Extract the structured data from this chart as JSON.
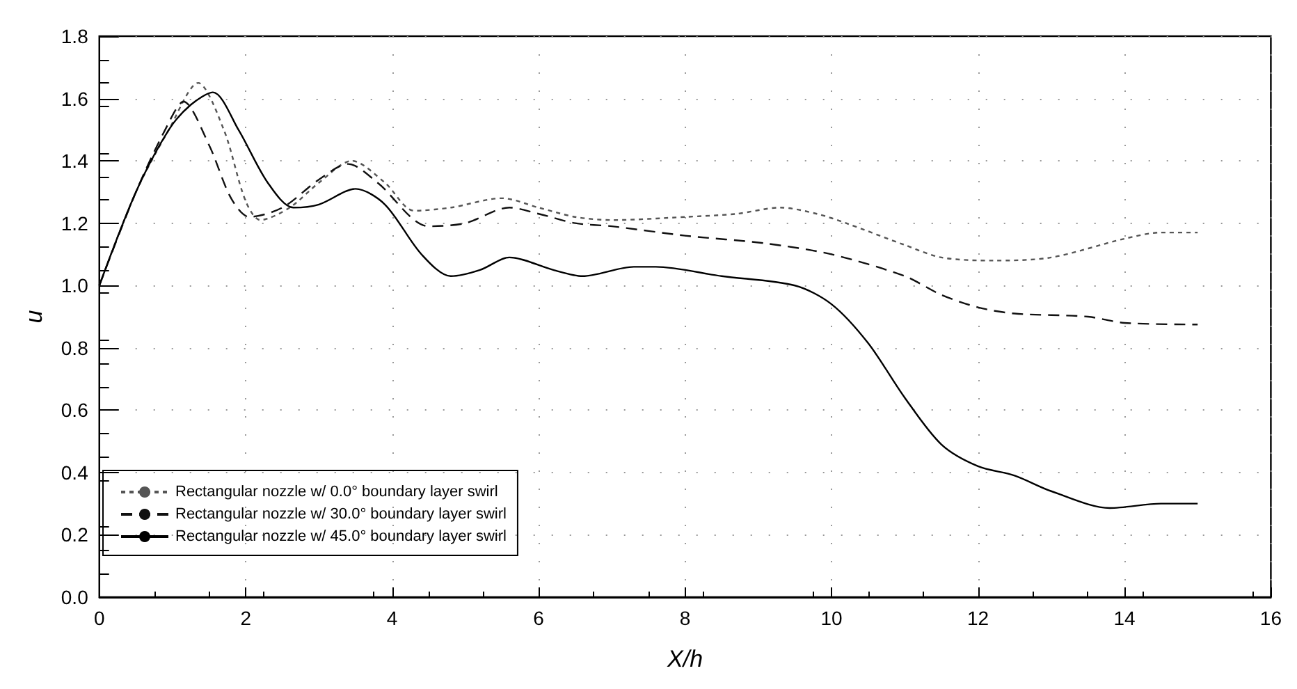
{
  "chart_data": {
    "type": "line",
    "xlabel": "X/h",
    "ylabel": "u",
    "xlim": [
      0,
      16
    ],
    "xticks": [
      0,
      2,
      4,
      6,
      8,
      10,
      12,
      14,
      16
    ],
    "ylim": [
      0,
      1.8
    ],
    "yticks": [
      {
        "value": 0,
        "label": "0.0"
      },
      0.2,
      0.4,
      0.6,
      0.8,
      {
        "value": 1,
        "label": "1.0"
      },
      1.2,
      1.4,
      1.6,
      1.8
    ],
    "grid": true,
    "legend": "bottom left",
    "marker": "none",
    "series": [
      {
        "name": "Rectangular nozzle w/ 0.0° boundary layer swirl",
        "color": "#555555",
        "line_style": "dotted",
        "x": [
          0,
          0.5,
          0.95,
          1.35,
          1.7,
          2.0,
          2.2,
          2.6,
          3.0,
          3.45,
          3.9,
          4.3,
          4.8,
          5.5,
          6.0,
          6.5,
          7.0,
          8.0,
          8.7,
          9.3,
          9.8,
          10.2,
          11.0,
          11.5,
          12.2,
          13.0,
          14.0,
          14.5,
          15.0
        ],
        "values": [
          1.0,
          1.3,
          1.5,
          1.65,
          1.5,
          1.27,
          1.21,
          1.25,
          1.33,
          1.4,
          1.33,
          1.24,
          1.25,
          1.28,
          1.25,
          1.22,
          1.21,
          1.22,
          1.23,
          1.25,
          1.23,
          1.2,
          1.13,
          1.09,
          1.08,
          1.09,
          1.15,
          1.17,
          1.17
        ]
      },
      {
        "name": "Rectangular nozzle w/ 30.0° boundary layer swirl",
        "color": "#111111",
        "line_style": "dashed",
        "x": [
          0,
          0.5,
          0.9,
          1.15,
          1.5,
          1.8,
          2.05,
          2.5,
          3.0,
          3.4,
          3.8,
          4.5,
          5.0,
          5.6,
          6.0,
          6.5,
          7.0,
          8.0,
          9.1,
          10.0,
          11.0,
          11.5,
          12.0,
          12.5,
          13.5,
          14.0,
          15.0
        ],
        "values": [
          1.0,
          1.3,
          1.5,
          1.59,
          1.45,
          1.28,
          1.22,
          1.25,
          1.34,
          1.39,
          1.33,
          1.19,
          1.2,
          1.25,
          1.23,
          1.2,
          1.19,
          1.16,
          1.135,
          1.1,
          1.03,
          0.97,
          0.93,
          0.91,
          0.9,
          0.88,
          0.875
        ]
      },
      {
        "name": "Rectangular nozzle w/ 45.0° boundary layer swirl",
        "color": "#000000",
        "line_style": "solid",
        "x": [
          0,
          0.5,
          0.95,
          1.25,
          1.55,
          1.9,
          2.3,
          2.65,
          3.0,
          3.5,
          3.9,
          4.4,
          4.8,
          5.2,
          5.6,
          6.2,
          6.6,
          7.3,
          7.6,
          8.5,
          9.5,
          10.0,
          10.5,
          11.0,
          11.5,
          12.0,
          12.5,
          13.0,
          13.8,
          14.5,
          15.0
        ],
        "values": [
          1.0,
          1.3,
          1.5,
          1.58,
          1.62,
          1.5,
          1.33,
          1.25,
          1.26,
          1.31,
          1.26,
          1.1,
          1.03,
          1.05,
          1.09,
          1.05,
          1.03,
          1.06,
          1.06,
          1.03,
          1.0,
          0.94,
          0.815,
          0.64,
          0.49,
          0.42,
          0.39,
          0.34,
          0.286,
          0.3,
          0.3
        ]
      }
    ]
  }
}
